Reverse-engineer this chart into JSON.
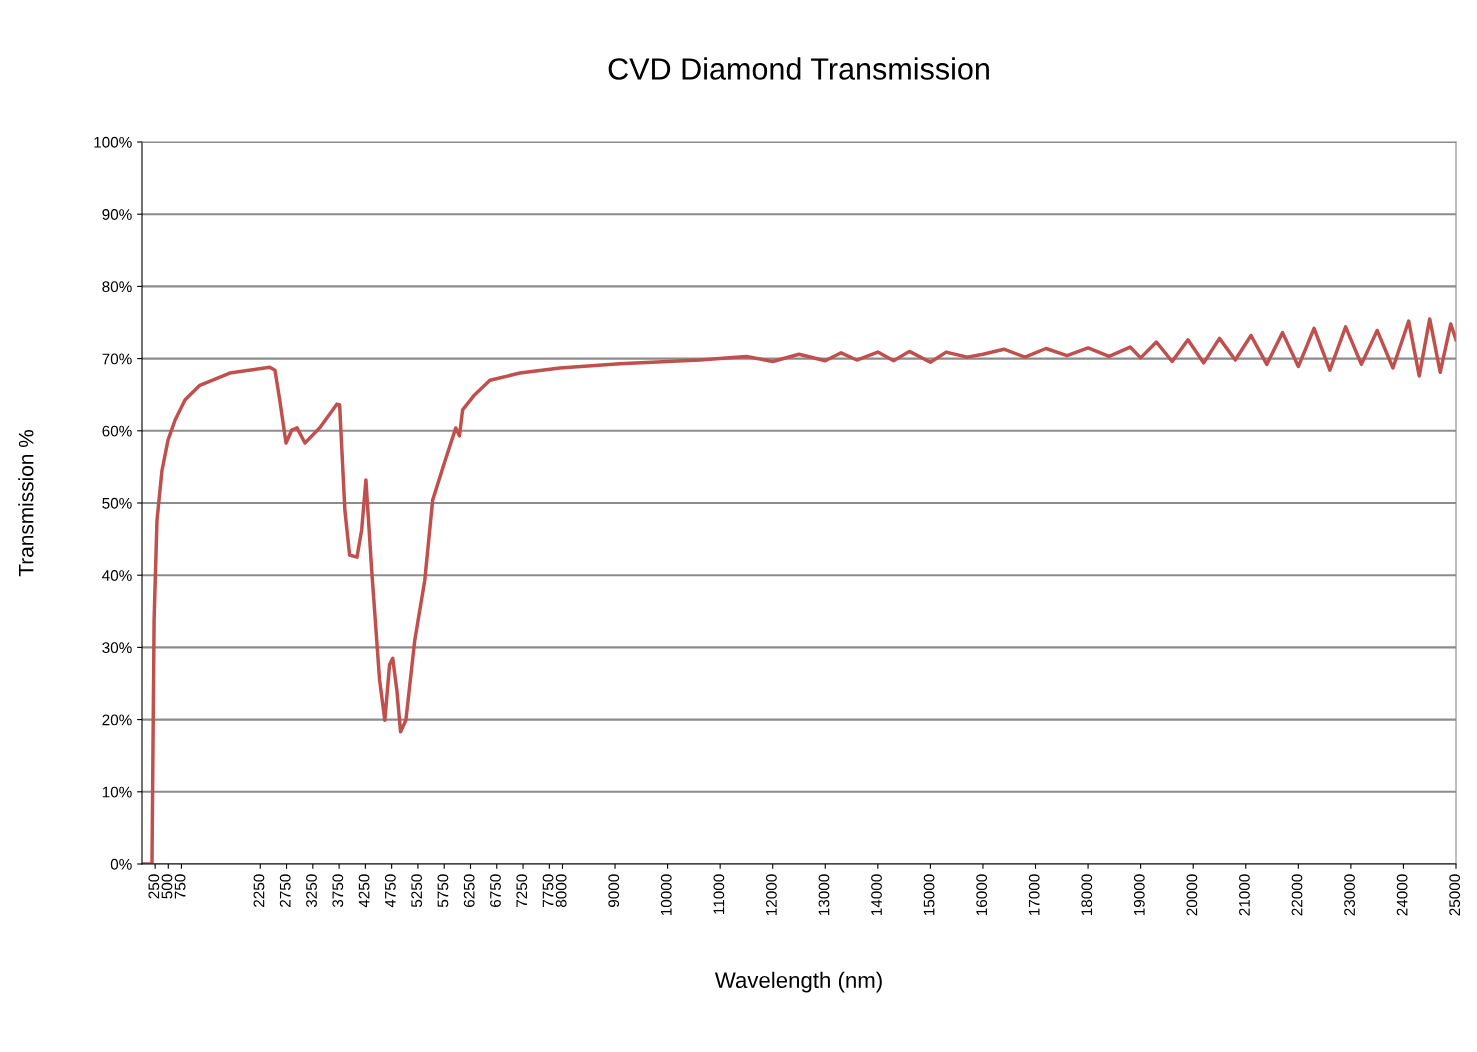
{
  "chart_data": {
    "type": "line",
    "title": "CVD Diamond Transmission",
    "xlabel": "Wavelength (nm)",
    "ylabel": "Transmission %",
    "xlim": [
      0,
      25000
    ],
    "ylim": [
      0,
      100
    ],
    "xticks": [
      250,
      500,
      750,
      2250,
      2750,
      3250,
      3750,
      4250,
      4750,
      5250,
      5750,
      6250,
      6750,
      7250,
      7750,
      8000,
      9000,
      10000,
      11000,
      12000,
      13000,
      14000,
      15000,
      16000,
      17000,
      18000,
      19000,
      20000,
      21000,
      22000,
      23000,
      24000,
      25000
    ],
    "yticks": [
      {
        "value": 0,
        "label": "0%"
      },
      {
        "value": 10,
        "label": "10%"
      },
      {
        "value": 20,
        "label": "20%"
      },
      {
        "value": 30,
        "label": "30%"
      },
      {
        "value": 40,
        "label": "40%"
      },
      {
        "value": 50,
        "label": "50%"
      },
      {
        "value": 60,
        "label": "60%"
      },
      {
        "value": 70,
        "label": "70%"
      },
      {
        "value": 80,
        "label": "80%"
      },
      {
        "value": 90,
        "label": "90%"
      },
      {
        "value": 100,
        "label": "100%"
      }
    ],
    "grid": "y",
    "marker": "none",
    "line_style": "solid",
    "series": [
      {
        "color": "#c0504d",
        "x": [
          0,
          190,
          230,
          285,
          380,
          495,
          630,
          820,
          1100,
          1670,
          2430,
          2530,
          2620,
          2740,
          2850,
          2950,
          3100,
          3380,
          3710,
          3760,
          3860,
          3950,
          4090,
          4180,
          4260,
          4370,
          4520,
          4620,
          4710,
          4770,
          4850,
          4920,
          5020,
          5190,
          5380,
          5530,
          5760,
          5970,
          6040,
          6100,
          6330,
          6620,
          7190,
          7950,
          9090,
          10610,
          11500,
          12000,
          12500,
          13000,
          13300,
          13600,
          14000,
          14300,
          14600,
          15000,
          15300,
          15700,
          16000,
          16400,
          16800,
          17200,
          17600,
          18000,
          18400,
          18800,
          19000,
          19300,
          19600,
          19900,
          20200,
          20500,
          20800,
          21100,
          21400,
          21700,
          22000,
          22300,
          22600,
          22900,
          23200,
          23500,
          23800,
          24100,
          24300,
          24500,
          24700,
          24900,
          25000
        ],
        "values": [
          0,
          0,
          33.8,
          47.6,
          54.5,
          58.7,
          61.5,
          64.3,
          66.3,
          68,
          68.8,
          68.4,
          64.3,
          58.3,
          60.1,
          60.4,
          58.3,
          60.4,
          63.7,
          63.6,
          49,
          42.8,
          42.5,
          46.3,
          53.2,
          40.7,
          25.5,
          19.9,
          27.6,
          28.5,
          24,
          18.3,
          19.9,
          31,
          39.3,
          50.4,
          55.7,
          60.4,
          59.3,
          62.9,
          65,
          67,
          68,
          68.7,
          69.3,
          69.8,
          70.3,
          69.6,
          70.6,
          69.7,
          70.8,
          69.8,
          70.9,
          69.7,
          71,
          69.5,
          70.9,
          70.2,
          70.6,
          71.3,
          70.2,
          71.4,
          70.4,
          71.5,
          70.3,
          71.6,
          70.1,
          72.3,
          69.6,
          72.6,
          69.4,
          72.8,
          69.8,
          73.2,
          69.2,
          73.6,
          68.9,
          74.2,
          68.4,
          74.4,
          69.2,
          73.9,
          68.7,
          75.2,
          67.6,
          75.5,
          68.1,
          74.8,
          72.6
        ]
      }
    ]
  }
}
